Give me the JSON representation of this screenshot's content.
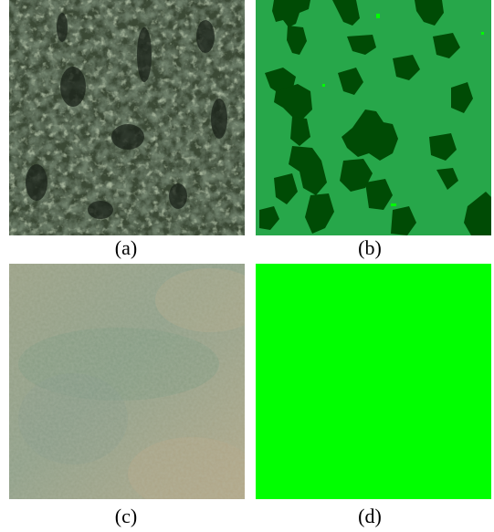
{
  "figure": {
    "panels": [
      {
        "id": "a",
        "caption": "(a)",
        "content": "forest-canopy-aerial-photo"
      },
      {
        "id": "b",
        "caption": "(b)",
        "content": "forest-segmentation-mask"
      },
      {
        "id": "c",
        "caption": "(c)",
        "content": "grassland-aerial-photo"
      },
      {
        "id": "d",
        "caption": "(d)",
        "content": "uniform-green-mask"
      }
    ]
  },
  "colors": {
    "forest_dark": "#2f3b2a",
    "forest_mid": "#4a5a40",
    "forest_shadow": "#1c241b",
    "mask_background": "#27a74a",
    "mask_region": "#004b05",
    "mask_speckle": "#00ff00",
    "grass_base": "#9ea183",
    "grass_green": "#7f9a7f",
    "grass_tan": "#b0a585",
    "uniform_green": "#00ff00"
  }
}
